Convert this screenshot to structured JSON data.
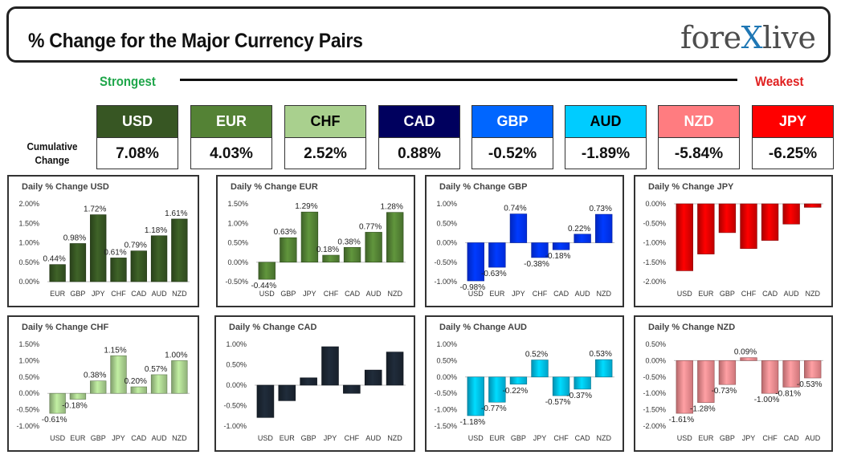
{
  "header": {
    "title": "% Change for the Major Currency Pairs",
    "logo_pre": "fore",
    "logo_x": "X",
    "logo_post": "live",
    "strongest": "Strongest",
    "weakest": "Weakest",
    "cumulative_line1": "Cumulative",
    "cumulative_line2": "Change"
  },
  "tiles": [
    {
      "currency": "USD",
      "value": "7.08%",
      "bg": "#375623",
      "fg": "#ffffff"
    },
    {
      "currency": "EUR",
      "value": "4.03%",
      "bg": "#548235",
      "fg": "#ffffff"
    },
    {
      "currency": "CHF",
      "value": "2.52%",
      "bg": "#a9d08e",
      "fg": "#000000"
    },
    {
      "currency": "CAD",
      "value": "0.88%",
      "bg": "#00005e",
      "fg": "#ffffff"
    },
    {
      "currency": "GBP",
      "value": "-0.52%",
      "bg": "#0066ff",
      "fg": "#ffffff"
    },
    {
      "currency": "AUD",
      "value": "-1.89%",
      "bg": "#00ccff",
      "fg": "#000000"
    },
    {
      "currency": "NZD",
      "value": "-5.84%",
      "bg": "#ff7c80",
      "fg": "#ffffff"
    },
    {
      "currency": "JPY",
      "value": "-6.25%",
      "bg": "#ff0000",
      "fg": "#ffffff"
    }
  ],
  "chart_data": [
    {
      "type": "bar",
      "title": "Daily % Change USD",
      "color": "#375623",
      "categories": [
        "EUR",
        "GBP",
        "JPY",
        "CHF",
        "CAD",
        "AUD",
        "NZD"
      ],
      "values": [
        0.44,
        0.98,
        1.72,
        0.61,
        0.79,
        1.18,
        1.61
      ],
      "labels": [
        "0.44%",
        "0.98%",
        "1.72%",
        "0.61%",
        "0.79%",
        "1.18%",
        "1.61%"
      ],
      "yticks": [
        "2.00%",
        "1.50%",
        "1.00%",
        "0.50%",
        "0.00%"
      ],
      "ylim": [
        0,
        2.0
      ]
    },
    {
      "type": "bar",
      "title": "Daily % Change EUR",
      "color": "#548235",
      "categories": [
        "USD",
        "GBP",
        "JPY",
        "CHF",
        "CAD",
        "AUD",
        "NZD"
      ],
      "values": [
        -0.44,
        0.63,
        1.29,
        0.18,
        0.38,
        0.77,
        1.28
      ],
      "labels": [
        "-0.44%",
        "0.63%",
        "1.29%",
        "0.18%",
        "0.38%",
        "0.77%",
        "1.28%"
      ],
      "yticks": [
        "1.50%",
        "1.00%",
        "0.50%",
        "0.00%",
        "-0.50%"
      ],
      "ylim": [
        -0.5,
        1.5
      ]
    },
    {
      "type": "bar",
      "title": "Daily % Change GBP",
      "color": "#0033ff",
      "categories": [
        "USD",
        "EUR",
        "JPY",
        "CHF",
        "CAD",
        "AUD",
        "NZD"
      ],
      "values": [
        -0.98,
        -0.63,
        0.74,
        -0.38,
        -0.18,
        0.22,
        0.73
      ],
      "labels": [
        "-0.98%",
        "-0.63%",
        "0.74%",
        "-0.38%",
        "-0.18%",
        "0.22%",
        "0.73%"
      ],
      "yticks": [
        "1.00%",
        "0.50%",
        "0.00%",
        "-0.50%",
        "-1.00%"
      ],
      "ylim": [
        -1.0,
        1.0
      ]
    },
    {
      "type": "bar",
      "title": "Daily % Change JPY",
      "color": "#e00000",
      "categories": [
        "USD",
        "EUR",
        "GBP",
        "CHF",
        "CAD",
        "AUD",
        "NZD"
      ],
      "values": [
        -1.72,
        -1.29,
        -0.74,
        -1.15,
        -0.94,
        -0.52,
        -0.09
      ],
      "labels": [],
      "yticks": [
        "0.00%",
        "-0.50%",
        "-1.00%",
        "-1.50%",
        "-2.00%"
      ],
      "ylim": [
        -2.0,
        0
      ]
    },
    {
      "type": "bar",
      "title": "Daily % Change CHF",
      "color": "#a9d08e",
      "categories": [
        "USD",
        "EUR",
        "GBP",
        "JPY",
        "CAD",
        "AUD",
        "NZD"
      ],
      "values": [
        -0.61,
        -0.18,
        0.38,
        1.15,
        0.2,
        0.57,
        1.0
      ],
      "labels": [
        "-0.61%",
        "-0.18%",
        "0.38%",
        "1.15%",
        "0.20%",
        "0.57%",
        "1.00%"
      ],
      "yticks": [
        "1.50%",
        "1.00%",
        "0.50%",
        "0.00%",
        "-0.50%",
        "-1.00%"
      ],
      "ylim": [
        -1.0,
        1.5
      ]
    },
    {
      "type": "bar",
      "title": "Daily % Change CAD",
      "color": "#1c2633",
      "categories": [
        "USD",
        "EUR",
        "GBP",
        "JPY",
        "CHF",
        "AUD",
        "NZD"
      ],
      "values": [
        -0.79,
        -0.38,
        0.18,
        0.94,
        -0.2,
        0.37,
        0.81
      ],
      "labels": [],
      "yticks": [
        "1.00%",
        "0.50%",
        "0.00%",
        "-0.50%",
        "-1.00%"
      ],
      "ylim": [
        -1.0,
        1.0
      ]
    },
    {
      "type": "bar",
      "title": "Daily % Change AUD",
      "color": "#00bfea",
      "categories": [
        "USD",
        "EUR",
        "GBP",
        "JPY",
        "CHF",
        "CAD",
        "NZD"
      ],
      "values": [
        -1.18,
        -0.77,
        -0.22,
        0.52,
        -0.57,
        -0.37,
        0.53
      ],
      "labels": [
        "-1.18%",
        "-0.77%",
        "-0.22%",
        "0.52%",
        "-0.57%",
        "-0.37%",
        "0.53%"
      ],
      "yticks": [
        "1.00%",
        "0.50%",
        "0.00%",
        "-0.50%",
        "-1.00%",
        "-1.50%"
      ],
      "ylim": [
        -1.5,
        1.0
      ]
    },
    {
      "type": "bar",
      "title": "Daily % Change NZD",
      "color": "#f28b8f",
      "categories": [
        "USD",
        "EUR",
        "GBP",
        "JPY",
        "CHF",
        "CAD",
        "AUD"
      ],
      "values": [
        -1.61,
        -1.28,
        -0.73,
        0.09,
        -1.0,
        -0.81,
        -0.53
      ],
      "labels": [
        "-1.61%",
        "-1.28%",
        "-0.73%",
        "0.09%",
        "-1.00%",
        "-0.81%",
        "-0.53%"
      ],
      "yticks": [
        "0.50%",
        "0.00%",
        "-0.50%",
        "-1.00%",
        "-1.50%",
        "-2.00%"
      ],
      "ylim": [
        -2.0,
        0.5
      ]
    }
  ]
}
